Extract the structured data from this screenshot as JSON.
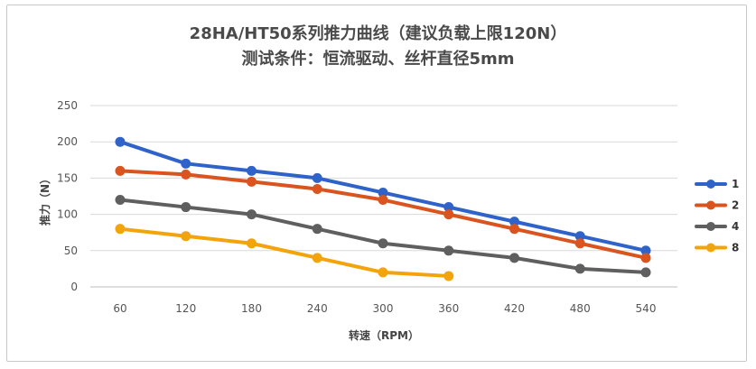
{
  "chart_data": {
    "type": "line",
    "title": "28HA/HT50系列推力曲线（建议负载上限120N）",
    "subtitle": "测试条件：恒流驱动、丝杆直径5mm",
    "xlabel": "转速（RPM）",
    "ylabel": "推力（N）",
    "categories": [
      "60",
      "120",
      "180",
      "240",
      "300",
      "360",
      "420",
      "480",
      "540"
    ],
    "ylim": [
      0,
      250
    ],
    "yticks": [
      0,
      50,
      100,
      150,
      200,
      250
    ],
    "grid": true,
    "legend_position": "right",
    "series": [
      {
        "name": "1",
        "color": "#2f63c9",
        "values": [
          200,
          170,
          160,
          150,
          130,
          110,
          90,
          70,
          50
        ]
      },
      {
        "name": "2",
        "color": "#d9541e",
        "values": [
          160,
          155,
          145,
          135,
          120,
          100,
          80,
          60,
          40
        ]
      },
      {
        "name": "4",
        "color": "#5f5f5f",
        "values": [
          120,
          110,
          100,
          80,
          60,
          50,
          40,
          25,
          20
        ]
      },
      {
        "name": "8",
        "color": "#f2a40a",
        "values": [
          80,
          70,
          60,
          40,
          20,
          15,
          null,
          null,
          null
        ]
      }
    ]
  }
}
